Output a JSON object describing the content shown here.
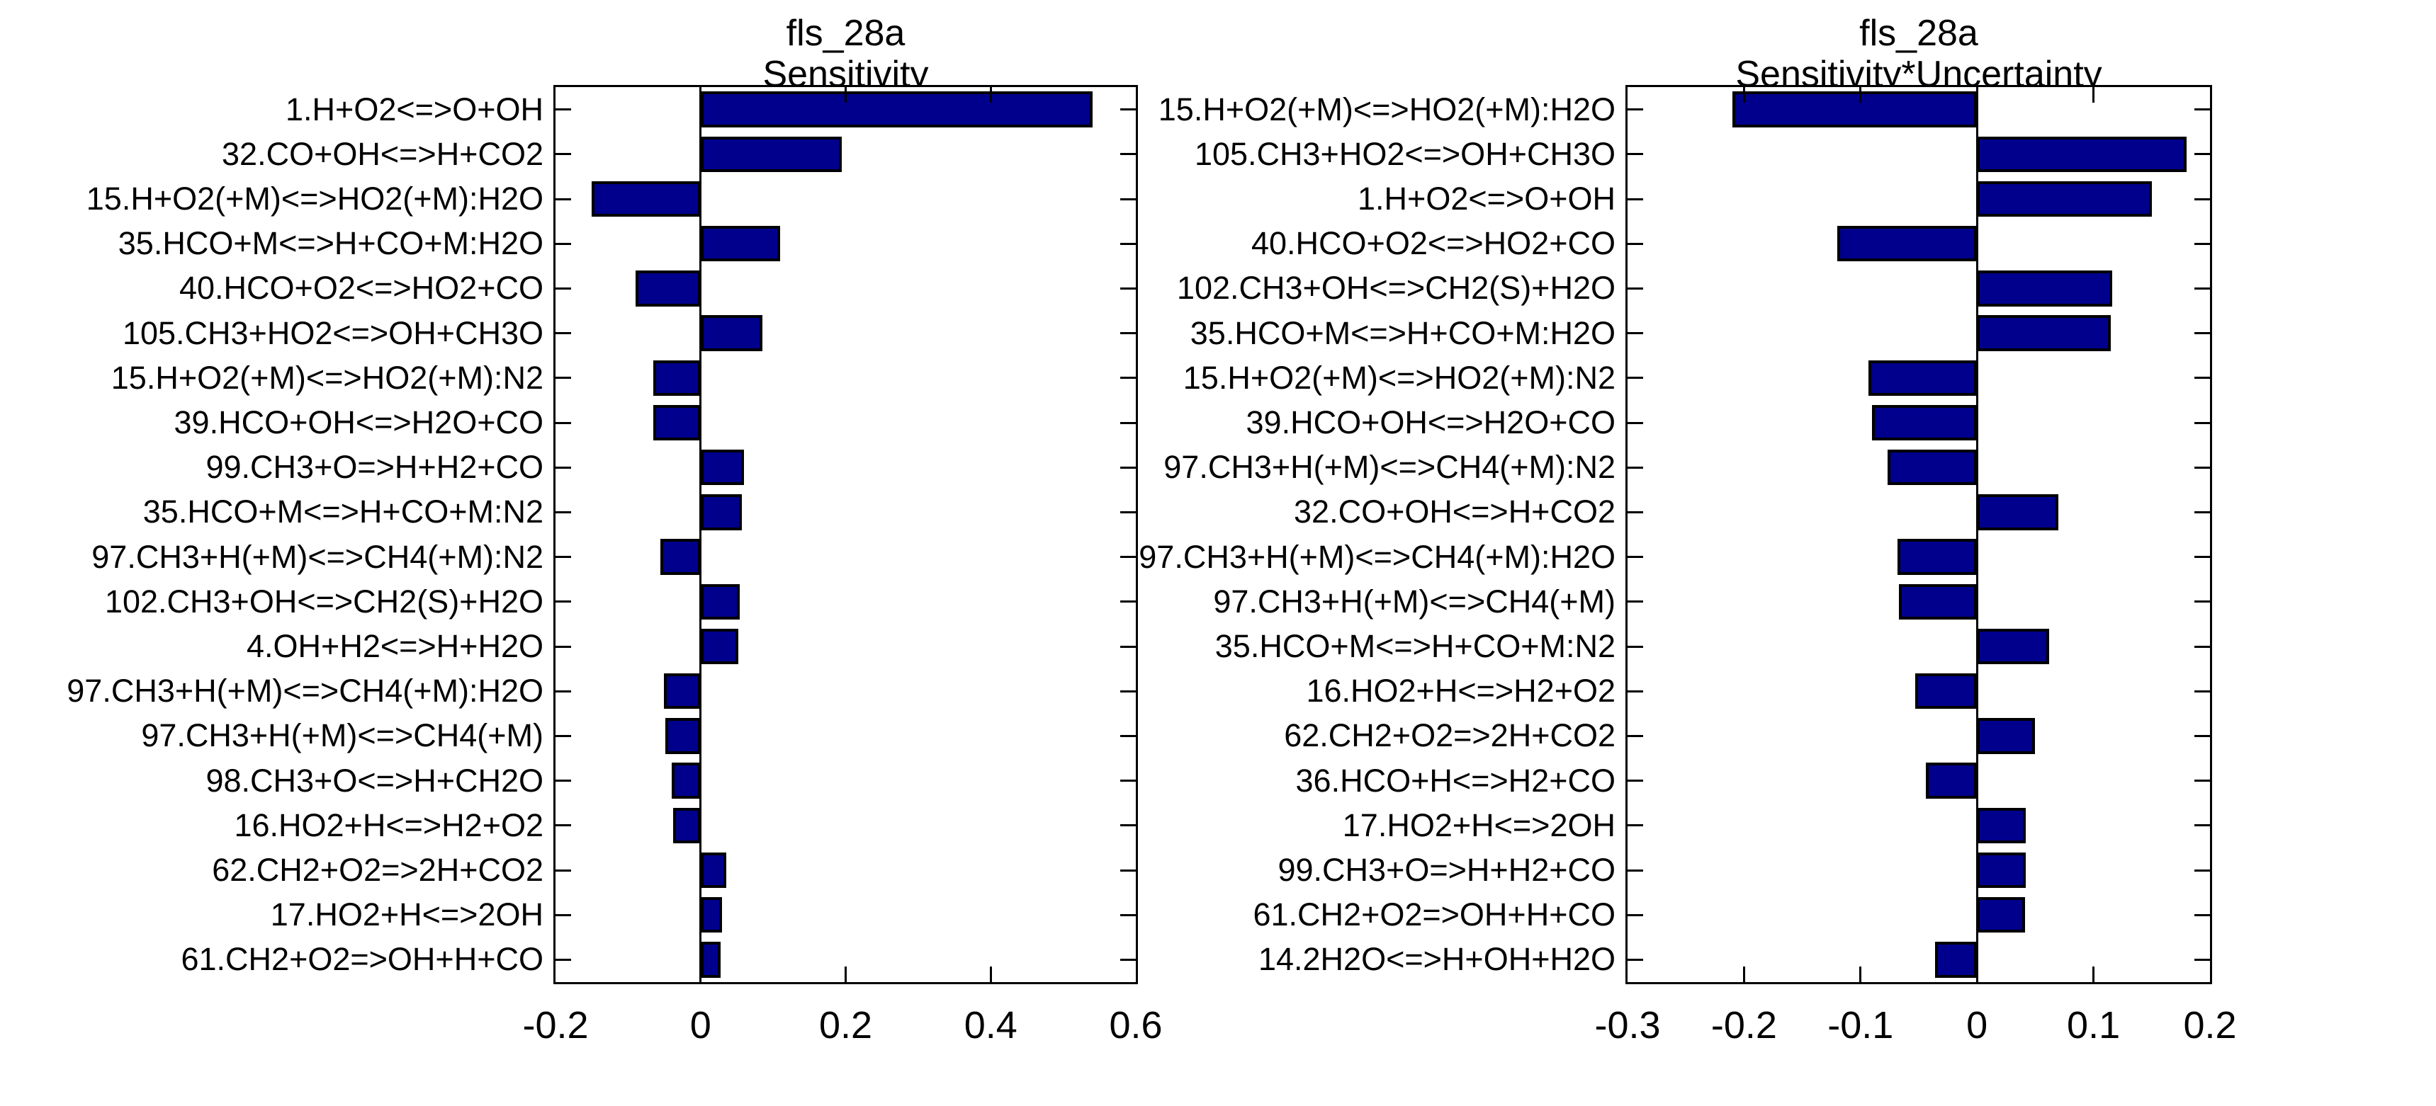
{
  "figure": {
    "background_color": "#ffffff",
    "axis_color": "#000000",
    "bar_color": "#00008C",
    "bar_edge_color": "#000000",
    "text_color": "#000000"
  },
  "chart_data": [
    {
      "type": "bar",
      "orientation": "horizontal",
      "title": "fls_28a",
      "subtitle": "Sensitivity",
      "xlabel": "",
      "ylabel": "",
      "xlim": [
        -0.2,
        0.6
      ],
      "xticks": [
        -0.2,
        0,
        0.2,
        0.4,
        0.6
      ],
      "xtick_labels": [
        "-0.2",
        "0",
        "0.2",
        "0.4",
        "0.6"
      ],
      "grid": false,
      "legend": null,
      "categories": [
        "1.H+O2<=>O+OH",
        "32.CO+OH<=>H+CO2",
        "15.H+O2(+M)<=>HO2(+M):H2O",
        "35.HCO+M<=>H+CO+M:H2O",
        "40.HCO+O2<=>HO2+CO",
        "105.CH3+HO2<=>OH+CH3O",
        "15.H+O2(+M)<=>HO2(+M):N2",
        "39.HCO+OH<=>H2O+CO",
        "99.CH3+O=>H+H2+CO",
        "35.HCO+M<=>H+CO+M:N2",
        "97.CH3+H(+M)<=>CH4(+M):N2",
        "102.CH3+OH<=>CH2(S)+H2O",
        "4.OH+H2<=>H+H2O",
        "97.CH3+H(+M)<=>CH4(+M):H2O",
        "97.CH3+H(+M)<=>CH4(+M)",
        "98.CH3+O<=>H+CH2O",
        "16.HO2+H<=>H2+O2",
        "62.CH2+O2=>2H+CO2",
        "17.HO2+H<=>2OH",
        "61.CH2+O2=>OH+H+CO"
      ],
      "values": [
        0.54,
        0.195,
        -0.15,
        0.11,
        -0.09,
        0.085,
        -0.065,
        -0.065,
        0.06,
        0.057,
        -0.055,
        0.054,
        0.052,
        -0.051,
        -0.049,
        -0.04,
        -0.038,
        0.035,
        0.03,
        0.028
      ]
    },
    {
      "type": "bar",
      "orientation": "horizontal",
      "title": "fls_28a",
      "subtitle": "Sensitivity*Uncertainty",
      "xlabel": "",
      "ylabel": "",
      "xlim": [
        -0.3,
        0.2
      ],
      "xticks": [
        -0.3,
        -0.2,
        -0.1,
        0,
        0.1,
        0.2
      ],
      "xtick_labels": [
        "-0.3",
        "-0.2",
        "-0.1",
        "0",
        "0.1",
        "0.2"
      ],
      "grid": false,
      "legend": null,
      "categories": [
        "15.H+O2(+M)<=>HO2(+M):H2O",
        "105.CH3+HO2<=>OH+CH3O",
        "1.H+O2<=>O+OH",
        "40.HCO+O2<=>HO2+CO",
        "102.CH3+OH<=>CH2(S)+H2O",
        "35.HCO+M<=>H+CO+M:H2O",
        "15.H+O2(+M)<=>HO2(+M):N2",
        "39.HCO+OH<=>H2O+CO",
        "97.CH3+H(+M)<=>CH4(+M):N2",
        "32.CO+OH<=>H+CO2",
        "97.CH3+H(+M)<=>CH4(+M):H2O",
        "97.CH3+H(+M)<=>CH4(+M)",
        "35.HCO+M<=>H+CO+M:N2",
        "16.HO2+H<=>H2+O2",
        "62.CH2+O2=>2H+CO2",
        "36.HCO+H<=>H2+CO",
        "17.HO2+H<=>2OH",
        "99.CH3+O=>H+H2+CO",
        "61.CH2+O2=>OH+H+CO",
        "14.2H2O<=>H+OH+H2O"
      ],
      "values": [
        -0.21,
        0.18,
        0.15,
        -0.12,
        0.116,
        0.115,
        -0.093,
        -0.09,
        -0.077,
        0.07,
        -0.068,
        -0.067,
        0.062,
        -0.053,
        0.05,
        -0.044,
        0.042,
        0.042,
        0.041,
        -0.036
      ]
    }
  ]
}
